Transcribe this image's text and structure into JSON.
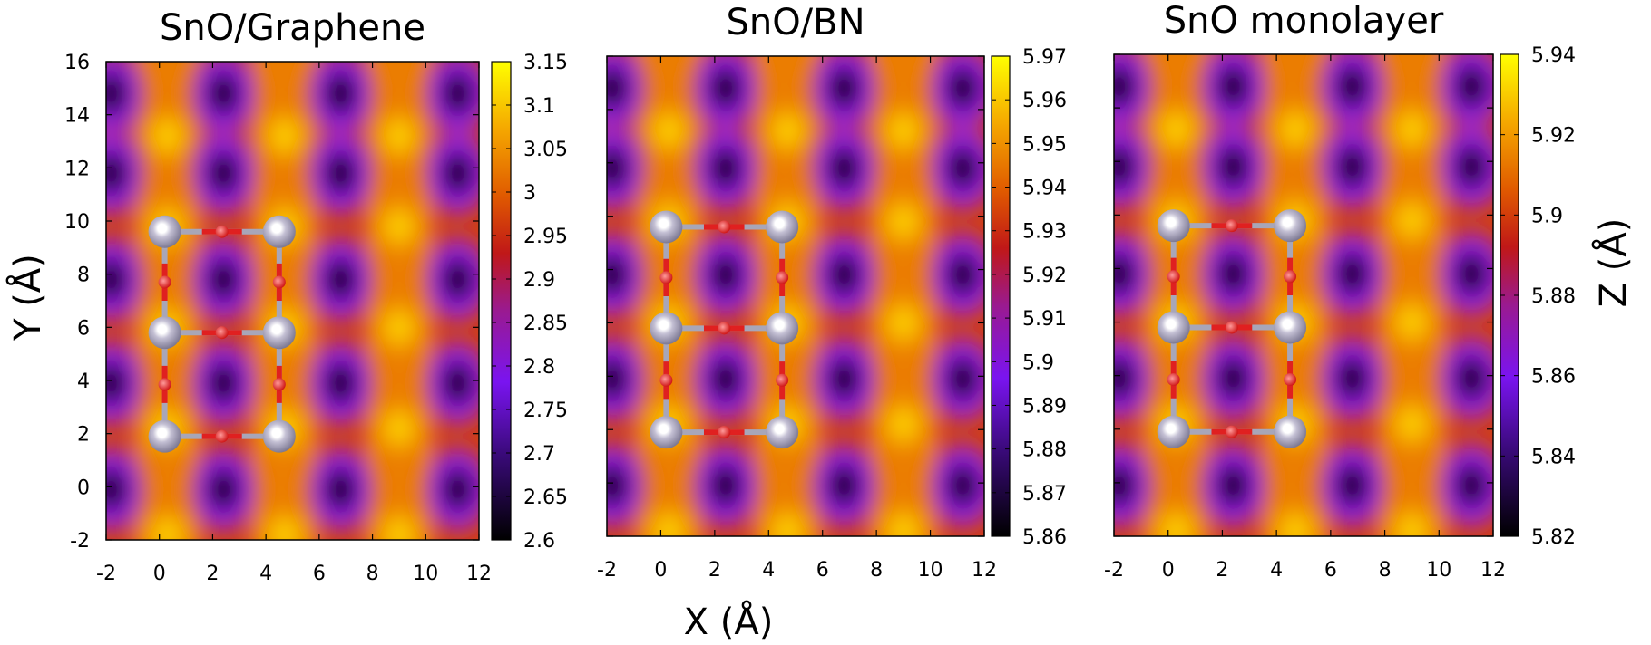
{
  "figure": {
    "xlabel": "X (Å)",
    "ylabel": "Y (Å)",
    "zlabel": "Z (Å)"
  },
  "chart_data": [
    {
      "type": "heatmap",
      "title": "SnO/Graphene",
      "xlim": [
        -2,
        12
      ],
      "ylim": [
        -2,
        16
      ],
      "x_ticks": [
        -2,
        0,
        2,
        4,
        6,
        8,
        10,
        12
      ],
      "y_ticks": [
        -2,
        0,
        2,
        4,
        6,
        8,
        10,
        12,
        14,
        16
      ],
      "colorbar": {
        "range": [
          2.6,
          3.15
        ],
        "ticks": [
          2.6,
          2.65,
          2.7,
          2.75,
          2.8,
          2.85,
          2.9,
          2.95,
          3,
          3.05,
          3.1,
          3.15
        ]
      },
      "grid": false
    },
    {
      "type": "heatmap",
      "title": "SnO/BN",
      "xlim": [
        -2,
        12
      ],
      "ylim": [
        -2,
        16
      ],
      "x_ticks": [
        -2,
        0,
        2,
        4,
        6,
        8,
        10,
        12
      ],
      "colorbar": {
        "range": [
          5.86,
          5.97
        ],
        "ticks": [
          5.86,
          5.87,
          5.88,
          5.89,
          5.9,
          5.91,
          5.92,
          5.93,
          5.94,
          5.95,
          5.96,
          5.97
        ]
      },
      "grid": false
    },
    {
      "type": "heatmap",
      "title": "SnO monolayer",
      "xlim": [
        -2,
        12
      ],
      "ylim": [
        -2,
        16
      ],
      "x_ticks": [
        -2,
        0,
        2,
        4,
        6,
        8,
        10,
        12
      ],
      "colorbar": {
        "range": [
          5.82,
          5.94
        ],
        "ticks": [
          5.82,
          5.84,
          5.86,
          5.88,
          5.9,
          5.92,
          5.94
        ]
      },
      "grid": false
    }
  ]
}
